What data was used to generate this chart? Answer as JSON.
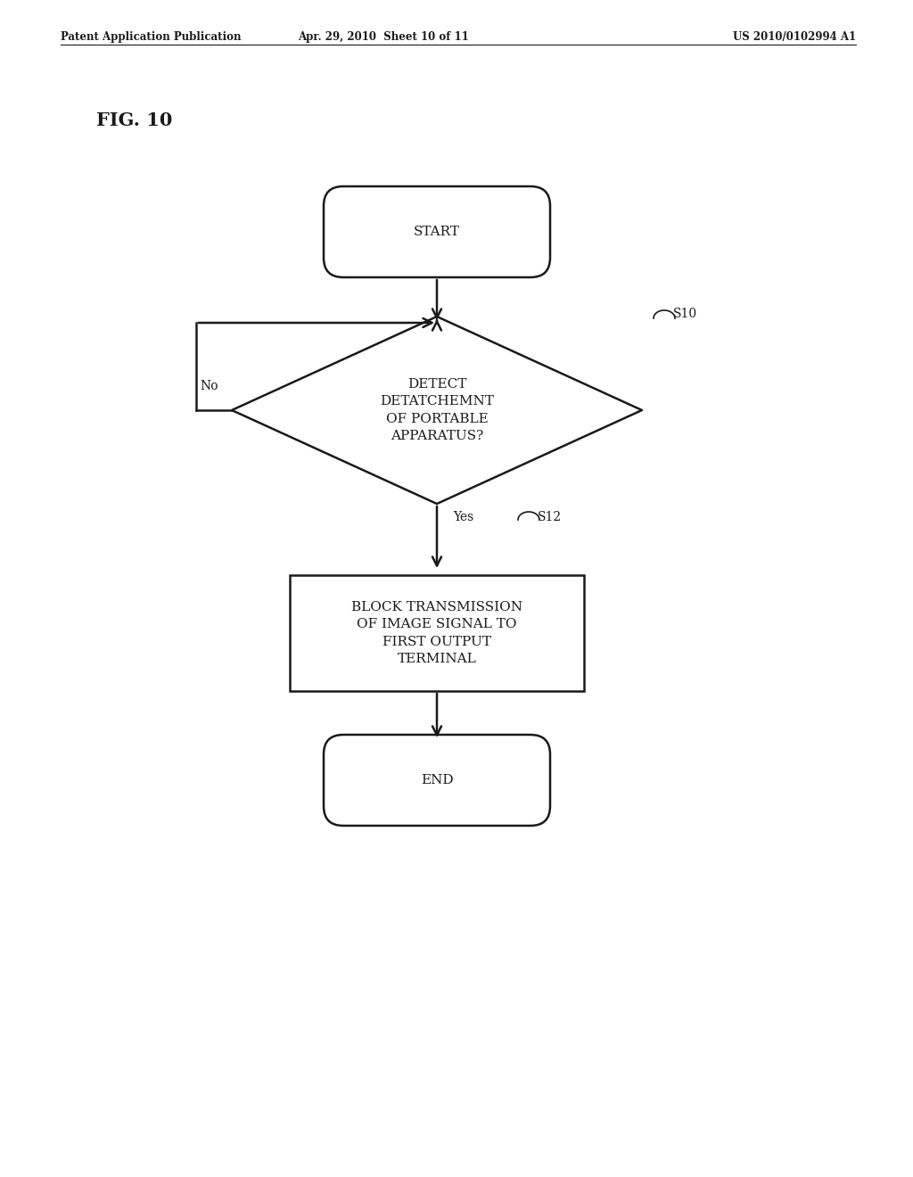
{
  "bg_color": "#ffffff",
  "header_left": "Patent Application Publication",
  "header_center": "Apr. 29, 2010  Sheet 10 of 11",
  "header_right": "US 2010/0102994 A1",
  "fig_label": "FIG. 10",
  "start_text": "START",
  "decision_text": "DETECT\nDETATCHEMNT\nOF PORTABLE\nAPPARATUS?",
  "process_text": "BLOCK TRANSMISSION\nOF IMAGE SIGNAL TO\nFIRST OUTPUT\nTERMINAL",
  "end_text": "END",
  "s10_label": "S10",
  "s12_label": "S12",
  "yes_label": "Yes",
  "no_label": "No",
  "line_color": "#1a1a1a",
  "text_color": "#1a1a1a",
  "font_size_header": 8.5,
  "font_size_shape": 11,
  "font_size_label": 10,
  "font_size_fig": 15
}
